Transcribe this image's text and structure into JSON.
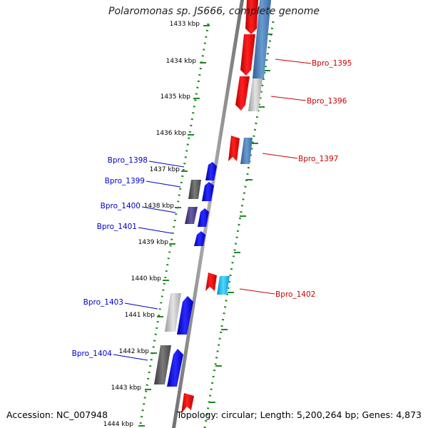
{
  "title": "Polaromonas sp. JS666, complete genome",
  "footer": {
    "accession": "Accession: NC_007948",
    "topology": "Topology: circular; Length: 5,200,264 bp; Genes: 4,873"
  },
  "colors": {
    "backbone": "#8a8a8a",
    "tick": "#1f8a1f",
    "forward_label": "#cc0000",
    "reverse_label": "#0000cc",
    "red": "#ee1111",
    "steel_blue": "#4a7fb5",
    "light_gray": "#c8c8c8",
    "blue": "#1010ee",
    "dark_gray": "#5a5a5a",
    "purple": "#4d3f8a",
    "cyan": "#20b8f0"
  },
  "ticks": [
    "1433 kbp",
    "1434 kbp",
    "1435 kbp",
    "1436 kbp",
    "1437 kbp",
    "1438 kbp",
    "1439 kbp",
    "1440 kbp",
    "1441 kbp",
    "1442 kbp",
    "1443 kbp",
    "1444 kbp"
  ],
  "gene_labels_right": [
    "Bpro_1395",
    "Bpro_1396",
    "Bpro_1397",
    "Bpro_1402"
  ],
  "gene_labels_left": [
    "Bpro_1398",
    "Bpro_1399",
    "Bpro_1400",
    "Bpro_1401",
    "Bpro_1403",
    "Bpro_1404"
  ]
}
